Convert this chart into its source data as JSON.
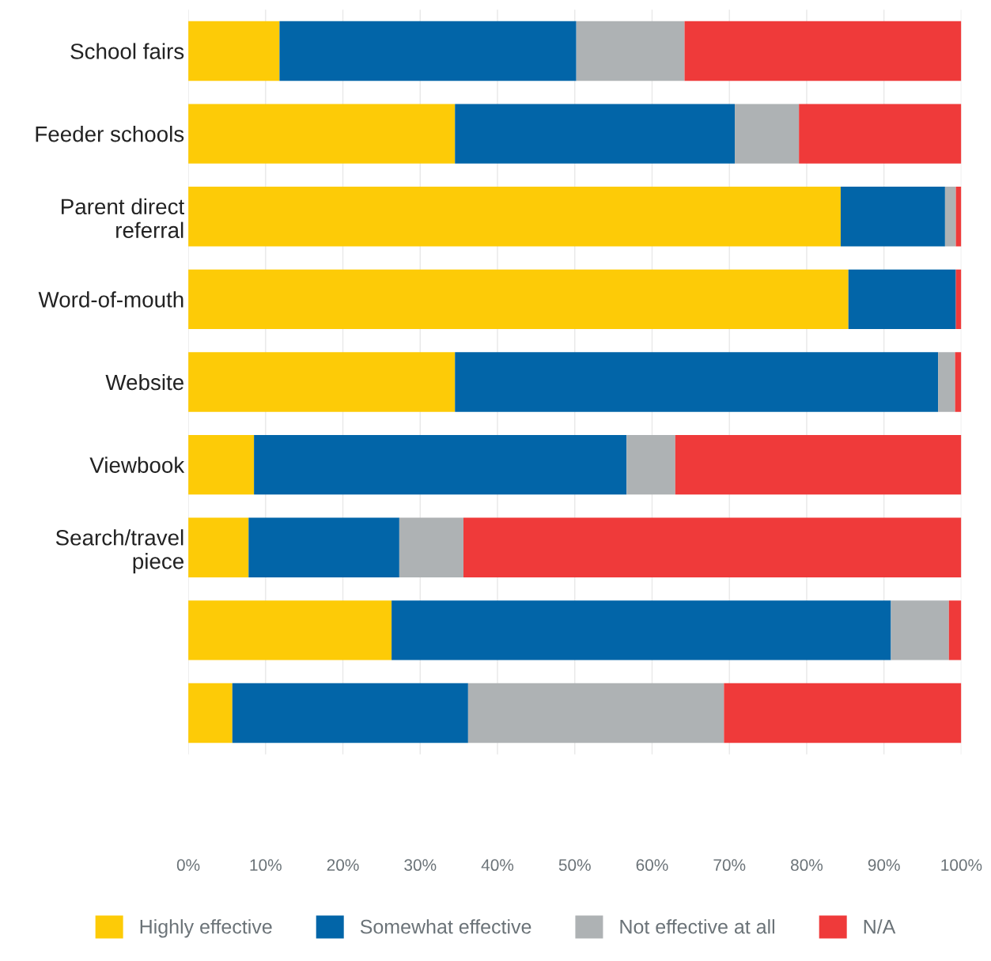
{
  "chart_data": {
    "type": "bar",
    "orientation": "horizontal",
    "stacked": true,
    "categories": [
      "School fairs",
      "Feeder schools",
      "Parent direct\nreferral",
      "Word-of-mouth",
      "Website",
      "Viewbook",
      "Search/travel\npiece",
      null,
      null
    ],
    "series": [
      {
        "name": "Highly effective",
        "color": "#fdcb07",
        "values": [
          11.8,
          34.5,
          84.4,
          85.4,
          34.5,
          8.5,
          7.8,
          26.3,
          5.7
        ]
      },
      {
        "name": "Somewhat effective",
        "color": "#0265a8",
        "values": [
          38.4,
          36.2,
          13.5,
          13.9,
          62.5,
          48.2,
          19.5,
          64.6,
          30.5
        ]
      },
      {
        "name": "Not effective at all",
        "color": "#aeb2b4",
        "values": [
          14.0,
          8.3,
          1.4,
          0,
          2.2,
          6.3,
          8.3,
          7.5,
          33.1
        ]
      },
      {
        "name": "N/A",
        "color": "#ef3a3a",
        "values": [
          35.8,
          21.0,
          0.7,
          0.7,
          0.8,
          37.0,
          64.4,
          1.6,
          30.7
        ]
      }
    ],
    "xlim": [
      0,
      100
    ],
    "xticks": [
      {
        "value": 0,
        "label": "0%"
      },
      {
        "value": 10,
        "label": "10%"
      },
      {
        "value": 20,
        "label": "20%"
      },
      {
        "value": 30,
        "label": "30%"
      },
      {
        "value": 40,
        "label": "40%"
      },
      {
        "value": 50,
        "label": "50%"
      },
      {
        "value": 60,
        "label": "60%"
      },
      {
        "value": 70,
        "label": "70%"
      },
      {
        "value": 80,
        "label": "80%"
      },
      {
        "value": 90,
        "label": "90%"
      },
      {
        "value": 100,
        "label": "100%"
      }
    ],
    "grid": "x",
    "legend": "bottom"
  }
}
